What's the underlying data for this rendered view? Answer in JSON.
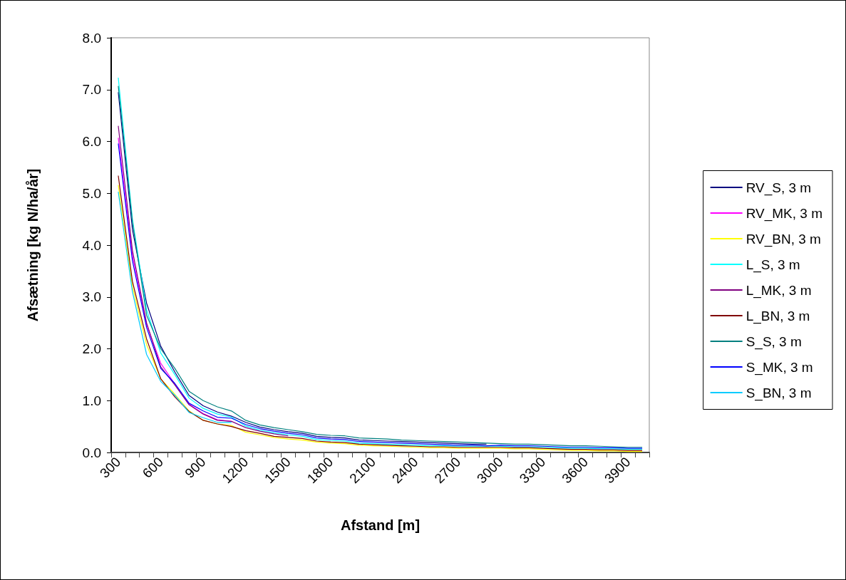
{
  "chart_data": {
    "type": "line",
    "xlabel": "Afstand [m]",
    "ylabel": "Afsætning [kg N/ha/år]",
    "categories": [
      "300",
      null,
      null,
      "600",
      null,
      null,
      "900",
      null,
      null,
      "1200",
      null,
      null,
      "1500",
      null,
      null,
      "1800",
      null,
      null,
      "2100",
      null,
      null,
      "2400",
      null,
      null,
      "2700",
      null,
      null,
      "3000",
      null,
      null,
      "3300",
      null,
      null,
      "3600",
      null,
      null,
      "3900",
      null
    ],
    "ylim": [
      0,
      8
    ],
    "yticks": [
      {
        "value": 0,
        "label": "0.0"
      },
      {
        "value": 1,
        "label": "1.0"
      },
      {
        "value": 2,
        "label": "2.0"
      },
      {
        "value": 3,
        "label": "3.0"
      },
      {
        "value": 4,
        "label": "4.0"
      },
      {
        "value": 5,
        "label": "5.0"
      },
      {
        "value": 6,
        "label": "6.0"
      },
      {
        "value": 7,
        "label": "7.0"
      },
      {
        "value": 8,
        "label": "8.0"
      }
    ],
    "grid": false,
    "legend": "right",
    "marker": "none",
    "line_style": "solid",
    "series": [
      {
        "name": "RV_S, 3 m",
        "color": "#000080",
        "values": [
          6.95,
          4.3,
          2.88,
          2.05,
          1.55,
          1.1,
          0.9,
          0.78,
          0.7,
          0.58,
          0.49,
          0.44,
          0.4,
          0.37,
          0.31,
          0.29,
          0.28,
          0.24,
          0.23,
          0.22,
          0.21,
          0.2,
          0.19,
          0.18,
          0.17,
          0.16,
          0.16,
          null,
          null,
          null,
          null,
          null,
          null,
          null,
          null,
          null,
          null,
          null
        ]
      },
      {
        "name": "RV_MK, 3 m",
        "color": "#ff00ff",
        "values": [
          6.07,
          3.8,
          2.47,
          1.72,
          1.32,
          0.93,
          0.75,
          0.63,
          0.6,
          null,
          null,
          null,
          null,
          null,
          null,
          null,
          null,
          null,
          null,
          null,
          null,
          null,
          null,
          null,
          null,
          null,
          null,
          null,
          null,
          null,
          null,
          null,
          null,
          null,
          null,
          null,
          null,
          null
        ]
      },
      {
        "name": "RV_BN, 3 m",
        "color": "#ffff00",
        "values": [
          5.16,
          3.2,
          2.08,
          1.42,
          1.12,
          0.8,
          0.62,
          0.55,
          0.52,
          0.39,
          0.34,
          0.29,
          0.26,
          0.24,
          0.2,
          0.18,
          0.17,
          0.14,
          0.13,
          0.12,
          0.11,
          0.1,
          0.09,
          0.09,
          0.08,
          0.08,
          0.08,
          0.08,
          0.07,
          0.07,
          0.06,
          0.05,
          0.04,
          0.04,
          0.03,
          0.03,
          0.02,
          0.02
        ]
      },
      {
        "name": "L_S, 3 m",
        "color": "#00ffff",
        "values": [
          7.23,
          4.5,
          2.75,
          1.92,
          1.5,
          1.05,
          0.85,
          0.74,
          0.68,
          0.51,
          0.43,
          0.38,
          0.34,
          0.31,
          0.25,
          0.23,
          0.22,
          0.18,
          0.17,
          0.16,
          0.15,
          0.14,
          0.13,
          0.13,
          0.12,
          0.12,
          0.12,
          0.12,
          0.11,
          0.11,
          0.1,
          0.09,
          0.08,
          0.08,
          0.07,
          0.07,
          0.06,
          0.06
        ]
      },
      {
        "name": "L_MK, 3 m",
        "color": "#800080",
        "values": [
          6.3,
          3.9,
          2.5,
          1.65,
          1.3,
          0.92,
          0.74,
          0.62,
          0.6,
          0.48,
          0.41,
          0.36,
          0.32,
          null,
          null,
          null,
          null,
          null,
          null,
          null,
          null,
          null,
          null,
          null,
          null,
          null,
          null,
          null,
          null,
          null,
          null,
          null,
          null,
          null,
          null,
          null,
          null,
          null
        ]
      },
      {
        "name": "L_BN, 3 m",
        "color": "#800000",
        "values": [
          5.34,
          3.3,
          2.19,
          1.42,
          1.07,
          0.79,
          0.62,
          0.55,
          0.5,
          0.42,
          0.37,
          0.31,
          0.29,
          0.27,
          0.22,
          0.2,
          0.19,
          0.16,
          0.15,
          0.14,
          0.13,
          0.12,
          0.11,
          0.11,
          0.1,
          0.1,
          0.1,
          0.1,
          0.09,
          0.09,
          0.08,
          0.07,
          0.06,
          0.06,
          0.05,
          0.05,
          0.04,
          0.04
        ]
      },
      {
        "name": "S_S, 3 m",
        "color": "#008080",
        "values": [
          7.07,
          4.45,
          2.65,
          2.0,
          1.62,
          1.18,
          1.0,
          0.88,
          0.8,
          0.62,
          0.53,
          0.48,
          0.44,
          0.4,
          0.35,
          0.33,
          0.32,
          0.28,
          0.27,
          0.26,
          0.24,
          0.23,
          0.22,
          0.21,
          0.2,
          0.19,
          0.18,
          0.17,
          0.16,
          0.16,
          0.15,
          0.14,
          0.13,
          0.13,
          0.12,
          0.11,
          0.1,
          0.1
        ]
      },
      {
        "name": "S_MK, 3 m",
        "color": "#0000ff",
        "values": [
          5.96,
          3.7,
          2.41,
          1.62,
          1.33,
          0.95,
          0.8,
          0.68,
          0.66,
          0.54,
          0.46,
          0.41,
          0.37,
          0.34,
          0.28,
          0.26,
          0.25,
          0.21,
          0.2,
          0.19,
          0.18,
          0.17,
          0.16,
          0.15,
          0.14,
          0.14,
          0.13,
          0.14,
          0.13,
          0.13,
          0.12,
          0.11,
          0.1,
          0.1,
          0.09,
          0.09,
          0.08,
          0.08
        ]
      },
      {
        "name": "S_BN, 3 m",
        "color": "#00ccff",
        "values": [
          5.03,
          3.1,
          1.89,
          1.37,
          1.1,
          0.77,
          0.67,
          0.58,
          0.58,
          null,
          null,
          null,
          null,
          null,
          null,
          null,
          null,
          null,
          null,
          null,
          null,
          null,
          null,
          null,
          null,
          null,
          null,
          null,
          null,
          null,
          null,
          null,
          null,
          null,
          null,
          null,
          null,
          null
        ]
      }
    ]
  }
}
